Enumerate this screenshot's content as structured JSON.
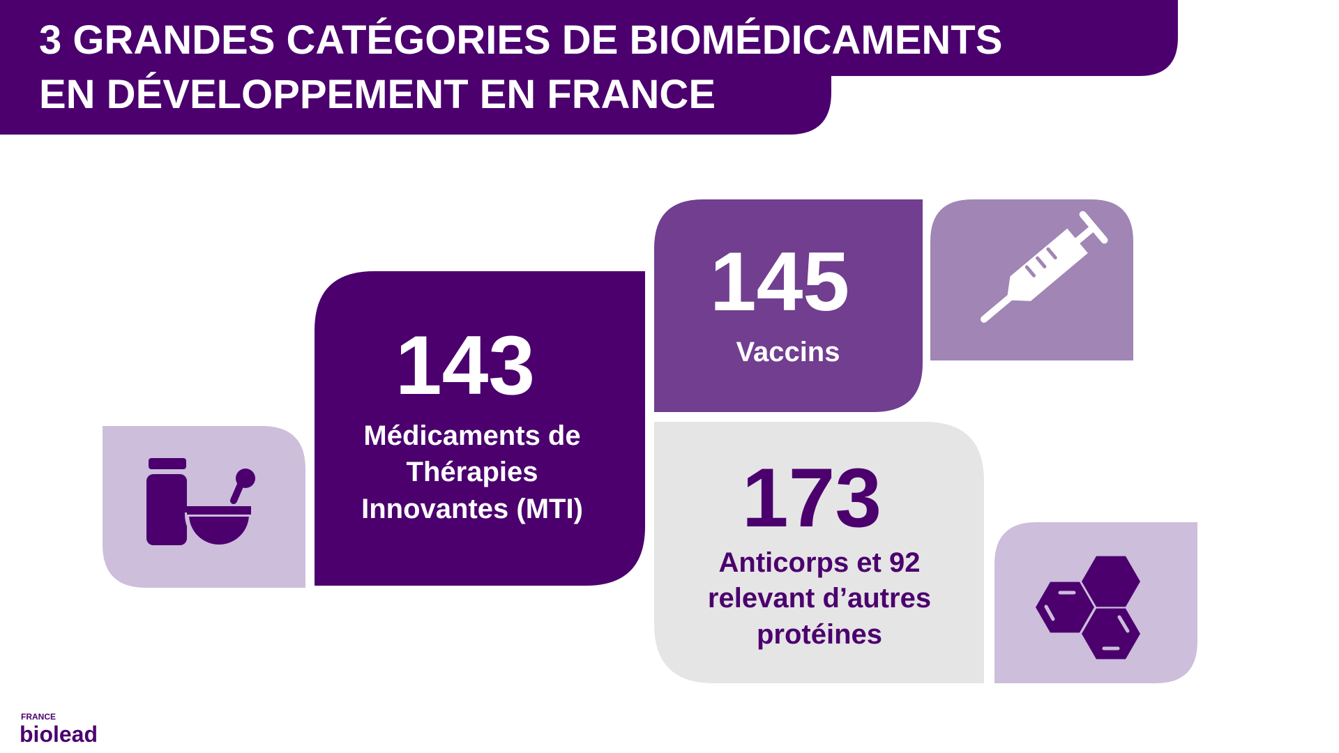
{
  "header": {
    "title_lines": [
      "3 GRANDES CATÉGORIES DE BIOMÉDICAMENTS",
      "EN DÉVELOPPEMENT EN FRANCE"
    ]
  },
  "cards": [
    {
      "value": 143,
      "label_lines": [
        "Médicaments de",
        "Thérapies",
        "Innovantes (MTI)"
      ]
    },
    {
      "value": 145,
      "label_lines": [
        "Vaccins"
      ]
    },
    {
      "value": 173,
      "label_lines": [
        "Anticorps et 92",
        "relevant d’autres",
        "protéines"
      ]
    }
  ],
  "logo": {
    "top": "FRANCE",
    "name": "biolead"
  }
}
